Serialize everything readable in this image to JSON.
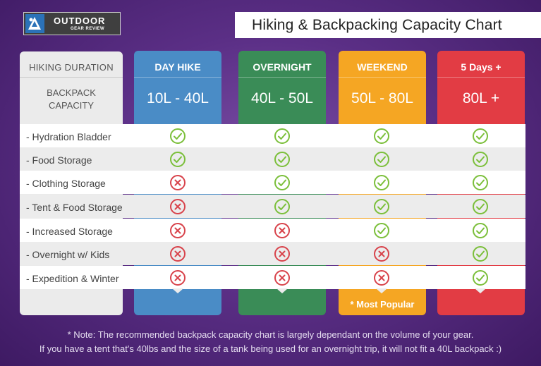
{
  "brand": {
    "title": "OUTDOOR",
    "subtitle": "GEAR REVIEW"
  },
  "chart_title": "Hiking & Backpacking Capacity Chart",
  "left_column": {
    "duration_label": "HIKING DURATION",
    "capacity_label_line1": "BACKPACK",
    "capacity_label_line2": "CAPACITY"
  },
  "columns": [
    {
      "title": "DAY HIKE",
      "range": "10L - 40L",
      "color": "#4a8cc6"
    },
    {
      "title": "OVERNIGHT",
      "range": "40L - 50L",
      "color": "#3a8c57"
    },
    {
      "title": "WEEKEND",
      "range": "50L - 80L",
      "color": "#f5a623"
    },
    {
      "title": "5 Days +",
      "range": "80L +",
      "color": "#e23c44"
    }
  ],
  "features": [
    {
      "label": "- Hydration Bladder",
      "values": [
        true,
        true,
        true,
        true
      ]
    },
    {
      "label": "- Food Storage",
      "values": [
        true,
        true,
        true,
        true
      ]
    },
    {
      "label": "- Clothing Storage",
      "values": [
        false,
        true,
        true,
        true
      ]
    },
    {
      "label": "- Tent & Food Storage",
      "values": [
        false,
        true,
        true,
        true
      ]
    },
    {
      "label": "- Increased Storage",
      "values": [
        false,
        false,
        true,
        true
      ]
    },
    {
      "label": "- Overnight w/ Kids",
      "values": [
        false,
        false,
        false,
        true
      ]
    },
    {
      "label": "- Expedition & Winter",
      "values": [
        false,
        false,
        false,
        true
      ]
    }
  ],
  "most_popular": "* Most Popular",
  "note_line1": "* Note: The recommended backpack capacity chart is largely dependant on the volume of your gear.",
  "note_line2": "If you have a tent that's 40lbs and the size of a tank being used for an overnight trip, it will not fit a 40L backpack :)",
  "icons": {
    "check": "check-circle-icon",
    "cross": "x-circle-icon",
    "logo": "hiker-logo-icon"
  },
  "colors": {
    "check": "#7bbf3a",
    "cross": "#d8434b",
    "background": "#5b2f86"
  }
}
